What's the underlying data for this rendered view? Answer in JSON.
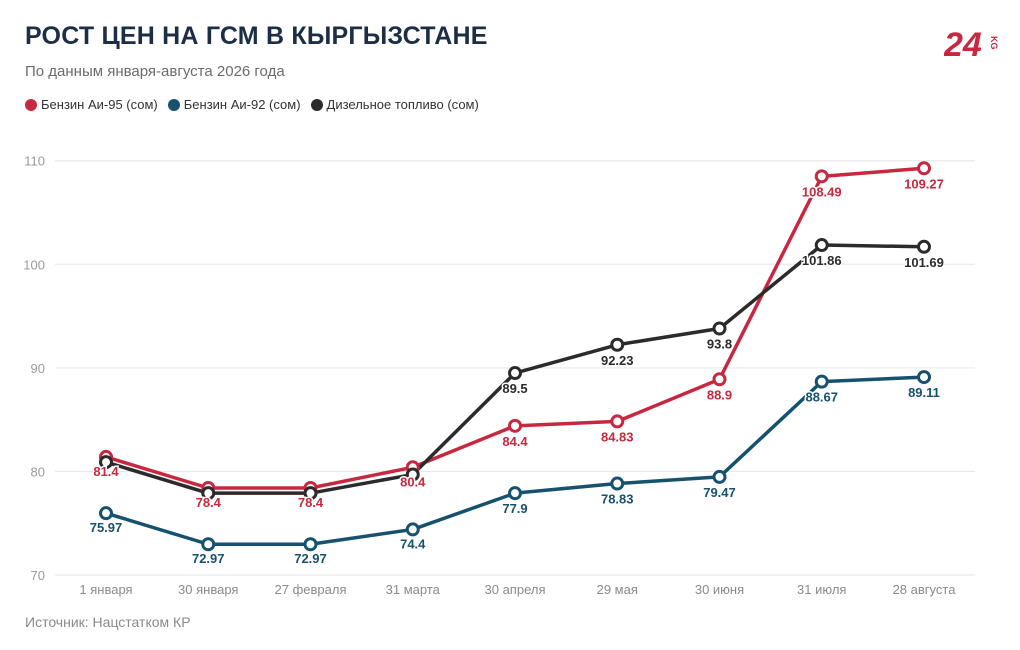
{
  "header": {
    "title": "РОСТ ЦЕН НА ГСМ В КЫРГЫЗСТАНЕ",
    "subtitle": "По данным января-августа 2026 года",
    "logo_number": "24",
    "logo_suffix": "KG"
  },
  "footer": {
    "source": "Источник: Нацстатком КР"
  },
  "colors": {
    "ai95": "#c8283f",
    "ai92": "#16526e",
    "diesel": "#2b2b2b",
    "grid": "#e6e6e6",
    "axis_text": "#9a9a9a"
  },
  "chart_data": {
    "type": "line",
    "title": "РОСТ ЦЕН НА ГСМ В КЫРГЫЗСТАНЕ",
    "subtitle": "По данным января-августа 2026 года",
    "categories": [
      "1 января",
      "30 января",
      "27 февраля",
      "31 марта",
      "30 апреля",
      "29 мая",
      "30 июня",
      "31 июля",
      "28 августа"
    ],
    "ylim": [
      70,
      112
    ],
    "yticks": [
      70,
      80,
      90,
      100,
      110
    ],
    "grid": true,
    "legend_position": "top-left",
    "series": [
      {
        "name": "Бензин Аи-95 (сом)",
        "color": "#c8283f",
        "values": [
          81.4,
          78.4,
          78.4,
          80.4,
          84.4,
          84.83,
          88.9,
          108.49,
          109.27
        ]
      },
      {
        "name": "Бензин Аи-92 (сом)",
        "color": "#16526e",
        "values": [
          75.97,
          72.97,
          72.97,
          74.4,
          77.9,
          78.83,
          79.47,
          88.67,
          89.11
        ]
      },
      {
        "name": "Дизельное топливо (сом)",
        "color": "#2b2b2b",
        "values": [
          80.9,
          77.9,
          77.9,
          79.7,
          89.5,
          92.23,
          93.8,
          101.86,
          101.69
        ],
        "labeled": [
          4,
          5,
          6,
          7,
          8
        ]
      }
    ]
  }
}
